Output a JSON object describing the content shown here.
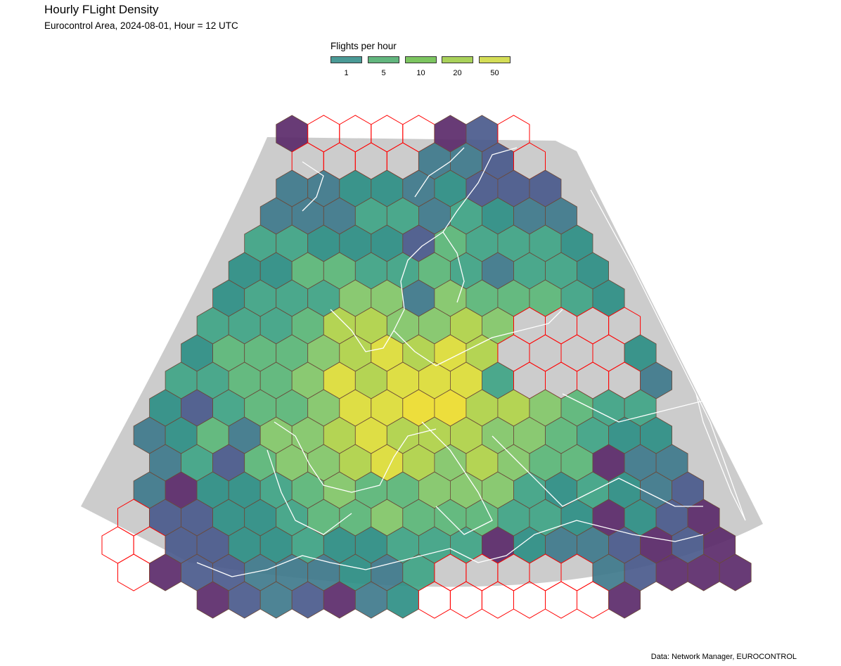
{
  "title": "Hourly FLight Density",
  "subtitle": "Eurocontrol Area, 2024-08-01, Hour = 12 UTC",
  "legend": {
    "title": "Flights per hour",
    "items": [
      {
        "label": "1",
        "color": "#4a9a96"
      },
      {
        "label": "5",
        "color": "#62b67e"
      },
      {
        "label": "10",
        "color": "#7cc560"
      },
      {
        "label": "20",
        "color": "#a9d15a"
      },
      {
        "label": "50",
        "color": "#d4dd56"
      }
    ]
  },
  "caption": "Data: Network Manager, EUROCONTROL",
  "colors": {
    "background": "#ffffff",
    "domain_fill": "#cccccc",
    "empty_cell_stroke": "#ff0000",
    "cell_stroke": "#6b4a3a",
    "coastline": "#ffffff",
    "palette": [
      "#5b2a6a",
      "#4a5a8c",
      "#3f7a8c",
      "#2e8f85",
      "#40a587",
      "#5cb87a",
      "#84c96a",
      "#b2d54a",
      "#dfe03a",
      "#f0e030"
    ]
  }
}
